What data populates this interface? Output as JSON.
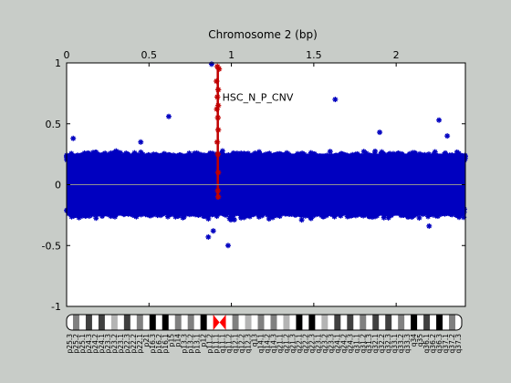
{
  "window": {
    "background": "#c8ccc8"
  },
  "chart_data": {
    "type": "scatter",
    "title": "Chromosome 2 (bp)",
    "xlabel": "",
    "ylabel": "",
    "x_ticks": [
      "0",
      "0.5",
      "1",
      "1.5",
      "2"
    ],
    "x_tick_values": [
      0,
      0.5,
      1,
      1.5,
      2
    ],
    "y_ticks": [
      "1",
      "0.5",
      "0",
      "-0.5",
      "-1"
    ],
    "y_tick_values": [
      1,
      0.5,
      0,
      -0.5,
      -1
    ],
    "xlim": [
      0,
      2.42
    ],
    "ylim": [
      -1,
      1
    ],
    "grid": false,
    "zero_line": true,
    "series": [
      {
        "color": "#0000c0",
        "marker": "asterisk",
        "description_band": {
          "x_range": [
            0,
            2.42
          ],
          "y_range": [
            -0.3,
            0.3
          ]
        },
        "outliers": [
          {
            "x": 0.62,
            "y": 0.56
          },
          {
            "x": 1.63,
            "y": 0.7
          },
          {
            "x": 2.26,
            "y": 0.53
          },
          {
            "x": 0.86,
            "y": -0.43
          },
          {
            "x": 0.98,
            "y": -0.5
          },
          {
            "x": 0.89,
            "y": -0.38
          },
          {
            "x": 2.2,
            "y": -0.34
          },
          {
            "x": 0.04,
            "y": 0.38
          },
          {
            "x": 0.45,
            "y": 0.35
          },
          {
            "x": 1.9,
            "y": 0.43
          },
          {
            "x": 2.31,
            "y": 0.4
          },
          {
            "x": 0.88,
            "y": 0.99
          }
        ]
      },
      {
        "name": "HSC_N_P_CNV",
        "color": "#c00000",
        "marker": "asterisk",
        "x_range": [
          0.905,
          0.93
        ],
        "points": [
          {
            "x": 0.915,
            "y": 0.97
          },
          {
            "x": 0.925,
            "y": 0.95
          },
          {
            "x": 0.91,
            "y": 0.85
          },
          {
            "x": 0.92,
            "y": 0.78
          },
          {
            "x": 0.915,
            "y": 0.72
          },
          {
            "x": 0.92,
            "y": 0.65
          },
          {
            "x": 0.912,
            "y": 0.62
          },
          {
            "x": 0.918,
            "y": 0.55
          },
          {
            "x": 0.92,
            "y": 0.45
          },
          {
            "x": 0.914,
            "y": 0.35
          },
          {
            "x": 0.918,
            "y": 0.25
          },
          {
            "x": 0.92,
            "y": 0.1
          },
          {
            "x": 0.918,
            "y": -0.05
          },
          {
            "x": 0.92,
            "y": -0.1
          }
        ]
      }
    ],
    "annotations": [
      {
        "text": "HSC_N_P_CNV",
        "x": 0.945,
        "y": 0.72
      }
    ],
    "ideogram": {
      "colors": {
        "gpos": "#000000",
        "gpos75": "#404040",
        "gpos50": "#808080",
        "gpos25": "#b4b4b4",
        "gneg": "#ffffff",
        "acen": "#ff0000"
      },
      "bands": [
        {
          "name": "p25.3",
          "stain": "gneg"
        },
        {
          "name": "p25.2",
          "stain": "gpos50"
        },
        {
          "name": "p25.1",
          "stain": "gneg"
        },
        {
          "name": "p24.3",
          "stain": "gpos75"
        },
        {
          "name": "p24.2",
          "stain": "gneg"
        },
        {
          "name": "p24.1",
          "stain": "gpos75"
        },
        {
          "name": "p23.3",
          "stain": "gneg"
        },
        {
          "name": "p23.2",
          "stain": "gpos25"
        },
        {
          "name": "p23.1",
          "stain": "gneg"
        },
        {
          "name": "p22.3",
          "stain": "gpos75"
        },
        {
          "name": "p22.2",
          "stain": "gneg"
        },
        {
          "name": "p22.1",
          "stain": "gpos50"
        },
        {
          "name": "p21",
          "stain": "gneg"
        },
        {
          "name": "p16.3",
          "stain": "gpos100"
        },
        {
          "name": "p16.2",
          "stain": "gneg"
        },
        {
          "name": "p16.1",
          "stain": "gpos100"
        },
        {
          "name": "p15",
          "stain": "gneg"
        },
        {
          "name": "p14",
          "stain": "gpos50"
        },
        {
          "name": "p13.3",
          "stain": "gneg"
        },
        {
          "name": "p13.2",
          "stain": "gpos50"
        },
        {
          "name": "p13.1",
          "stain": "gneg"
        },
        {
          "name": "p12",
          "stain": "gpos100"
        },
        {
          "name": "p11.2",
          "stain": "gneg"
        },
        {
          "name": "p11.1",
          "stain": "acen"
        },
        {
          "name": "q11.1",
          "stain": "acen"
        },
        {
          "name": "q11.2",
          "stain": "gneg"
        },
        {
          "name": "q12.1",
          "stain": "gpos50"
        },
        {
          "name": "q12.2",
          "stain": "gneg"
        },
        {
          "name": "q12.3",
          "stain": "gpos25"
        },
        {
          "name": "q13",
          "stain": "gneg"
        },
        {
          "name": "q14.1",
          "stain": "gpos50"
        },
        {
          "name": "q14.2",
          "stain": "gneg"
        },
        {
          "name": "q14.3",
          "stain": "gpos50"
        },
        {
          "name": "q21.1",
          "stain": "gneg"
        },
        {
          "name": "q21.2",
          "stain": "gpos25"
        },
        {
          "name": "q21.3",
          "stain": "gneg"
        },
        {
          "name": "q22.1",
          "stain": "gpos100"
        },
        {
          "name": "q22.2",
          "stain": "gneg"
        },
        {
          "name": "q22.3",
          "stain": "gpos100"
        },
        {
          "name": "q23.1",
          "stain": "gneg"
        },
        {
          "name": "q23.2",
          "stain": "gpos25"
        },
        {
          "name": "q23.3",
          "stain": "gneg"
        },
        {
          "name": "q24.1",
          "stain": "gpos75"
        },
        {
          "name": "q24.2",
          "stain": "gneg"
        },
        {
          "name": "q24.3",
          "stain": "gpos75"
        },
        {
          "name": "q31.1",
          "stain": "gneg"
        },
        {
          "name": "q31.2",
          "stain": "gpos50"
        },
        {
          "name": "q31.3",
          "stain": "gneg"
        },
        {
          "name": "q32.1",
          "stain": "gpos75"
        },
        {
          "name": "q32.2",
          "stain": "gneg"
        },
        {
          "name": "q32.3",
          "stain": "gpos75"
        },
        {
          "name": "q33.1",
          "stain": "gneg"
        },
        {
          "name": "q33.2",
          "stain": "gpos50"
        },
        {
          "name": "q33.3",
          "stain": "gneg"
        },
        {
          "name": "q34",
          "stain": "gpos100"
        },
        {
          "name": "q35",
          "stain": "gneg"
        },
        {
          "name": "q36.1",
          "stain": "gpos75"
        },
        {
          "name": "q36.2",
          "stain": "gneg"
        },
        {
          "name": "q36.3",
          "stain": "gpos100"
        },
        {
          "name": "q37.1",
          "stain": "gneg"
        },
        {
          "name": "q37.2",
          "stain": "gpos50"
        },
        {
          "name": "q37.3",
          "stain": "gneg"
        }
      ]
    }
  }
}
